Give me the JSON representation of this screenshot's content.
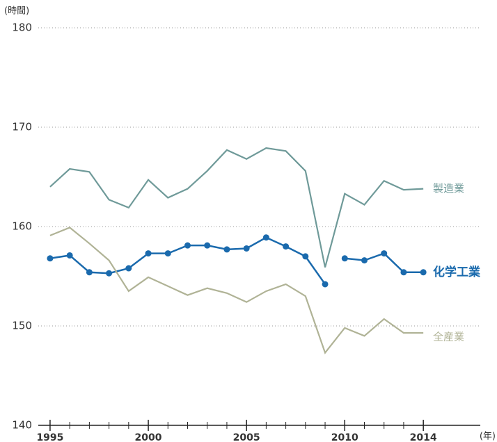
{
  "chart_data": {
    "type": "line",
    "y_unit": "(時間)",
    "x_unit": "(年)",
    "x": [
      1995,
      1996,
      1997,
      1998,
      1999,
      2000,
      2001,
      2002,
      2003,
      2004,
      2005,
      2006,
      2007,
      2008,
      2009,
      2010,
      2011,
      2012,
      2013,
      2014
    ],
    "series": [
      {
        "name": "製造業",
        "color": "#6f9a99",
        "marker": false,
        "values": [
          164.0,
          165.8,
          165.5,
          162.7,
          161.9,
          164.7,
          162.9,
          163.8,
          165.6,
          167.7,
          166.8,
          167.9,
          167.6,
          165.6,
          155.9,
          163.3,
          162.2,
          164.6,
          163.7,
          163.8
        ]
      },
      {
        "name": "化学工業",
        "color": "#1a6aad",
        "marker": true,
        "bold": true,
        "gaps": [
          [
            2009,
            2010
          ]
        ],
        "values": [
          156.8,
          157.1,
          155.4,
          155.3,
          155.8,
          157.3,
          157.3,
          158.1,
          158.1,
          157.7,
          157.8,
          158.9,
          158.0,
          157.0,
          154.2,
          156.8,
          156.6,
          157.3,
          155.4,
          155.4
        ]
      },
      {
        "name": "全産業",
        "color": "#b0b396",
        "marker": false,
        "values": [
          159.1,
          159.9,
          158.3,
          156.6,
          153.5,
          154.9,
          154.0,
          153.1,
          153.8,
          153.3,
          152.4,
          153.5,
          154.2,
          153.0,
          147.3,
          149.8,
          149.0,
          150.7,
          149.3,
          149.3
        ]
      }
    ],
    "xlim": [
      1994.4,
      2016.9
    ],
    "xticks": [
      1995,
      2000,
      2005,
      2010,
      2014
    ],
    "ylim": [
      140,
      180
    ],
    "yticks": [
      140,
      150,
      160,
      170,
      180
    ],
    "grid": true
  }
}
